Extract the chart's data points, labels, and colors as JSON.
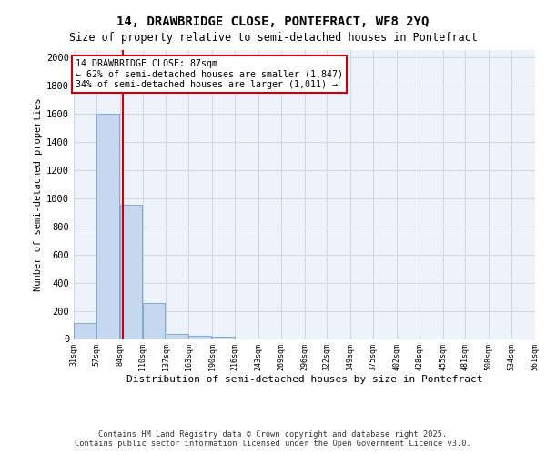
{
  "title1": "14, DRAWBRIDGE CLOSE, PONTEFRACT, WF8 2YQ",
  "title2": "Size of property relative to semi-detached houses in Pontefract",
  "xlabel": "Distribution of semi-detached houses by size in Pontefract",
  "ylabel": "Number of semi-detached properties",
  "bins": [
    31,
    57,
    84,
    110,
    137,
    163,
    190,
    216,
    243,
    269,
    296,
    322,
    349,
    375,
    402,
    428,
    455,
    481,
    508,
    534,
    561
  ],
  "counts": [
    110,
    1600,
    950,
    255,
    35,
    20,
    15,
    0,
    0,
    0,
    0,
    0,
    0,
    0,
    0,
    0,
    0,
    0,
    0,
    0
  ],
  "bar_color": "#c5d8f0",
  "bar_edge_color": "#7aadd4",
  "grid_color": "#d0d8e8",
  "bg_color": "#eef2fa",
  "property_size": 87,
  "property_line_color": "#cc0000",
  "annotation_text": "14 DRAWBRIDGE CLOSE: 87sqm\n← 62% of semi-detached houses are smaller (1,847)\n34% of semi-detached houses are larger (1,011) →",
  "annotation_box_color": "#ffffff",
  "annotation_border_color": "#cc0000",
  "ylim": [
    0,
    2050
  ],
  "yticks": [
    0,
    200,
    400,
    600,
    800,
    1000,
    1200,
    1400,
    1600,
    1800,
    2000
  ],
  "footer1": "Contains HM Land Registry data © Crown copyright and database right 2025.",
  "footer2": "Contains public sector information licensed under the Open Government Licence v3.0.",
  "tick_labels": [
    "31sqm",
    "57sqm",
    "84sqm",
    "110sqm",
    "137sqm",
    "163sqm",
    "190sqm",
    "216sqm",
    "243sqm",
    "269sqm",
    "296sqm",
    "322sqm",
    "349sqm",
    "375sqm",
    "402sqm",
    "428sqm",
    "455sqm",
    "481sqm",
    "508sqm",
    "534sqm",
    "561sqm"
  ]
}
